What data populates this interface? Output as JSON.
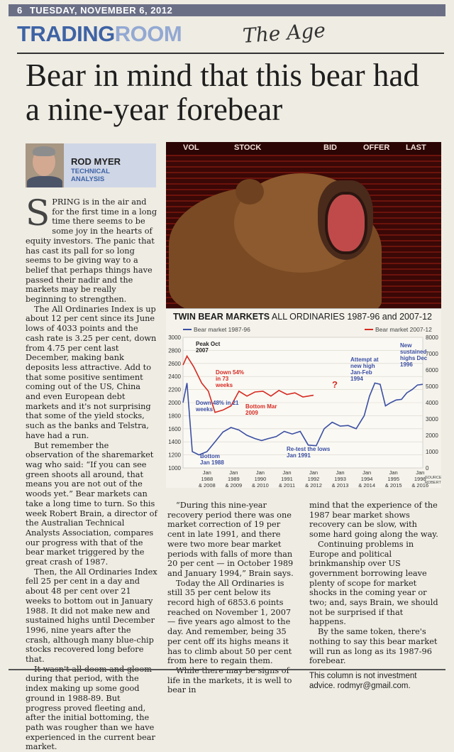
{
  "masthead": {
    "page": "6",
    "date": "TUESDAY, NOVEMBER 6, 2012",
    "section_part1": "TRADING",
    "section_part2": "ROOM",
    "handwritten": "The Age"
  },
  "headline": "Bear in mind that this bear had a nine-year forebear",
  "byline": {
    "author": "ROD MYER",
    "tagline_1": "TECHNICAL",
    "tagline_2": "ANALYSIS"
  },
  "photo": {
    "labels": [
      "VOL",
      "STOCK",
      "BID",
      "OFFER",
      "LAST"
    ]
  },
  "article": {
    "col1": [
      "S",
      "PRING is in the air and for the first time in a long time there seems to be some joy in the hearts of equity investors. The panic that has cast its pall for so long seems to be giving way to a belief that perhaps things have passed their nadir and the markets may be really beginning to strengthen.",
      "The All Ordinaries Index is up about 12 per cent since its June lows of 4033 points and the cash rate is 3.25 per cent, down from 4.75 per cent last December, making bank deposits less attractive. Add to that some positive sentiment coming out of the US, China and even European debt markets and it's not surprising that some of the yield stocks, such as the banks and Telstra, have had a run.",
      "But remember the observation of the sharemarket wag who said: “If you can see green shoots all around, that means you are not out of the woods yet.” Bear markets can take a long time to turn. So this week Robert Brain, a director of the Australian Technical Analysts Association, compares our progress with that of the bear market triggered by the great crash of 1987.",
      "Then, the All Ordinaries Index fell 25 per cent in a day and about 48 per cent over 21 weeks to bottom out in January 1988. It did not make new and sustained highs until December 1996, nine years after the crash, although many blue-chip stocks recovered long before that.",
      "It wasn't all doom and gloom during that period, with the index making up some good ground in 1988-89. But progress proved fleeting and, after the initial bottoming, the path was rougher than we have experienced in the current bear market."
    ],
    "col2": [
      "“During this nine-year recovery period there was one market correction of 19 per cent in late 1991, and there were two more bear market periods with falls of more than 20 per cent — in October 1989 and January 1994,” Brain says.",
      "Today the All Ordinaries is still 35 per cent below its record high of 6853.6 points reached on November 1, 2007 — five years ago almost to the day. And remember, being 35 per cent off its highs means it has to climb about 50 per cent from here to regain them.",
      "While there may be signs of life in the markets, it is well to bear in"
    ],
    "col3": [
      "mind that the experience of the 1987 bear market shows recovery can be slow, with some hard going along the way.",
      "Continuing problems in Europe and political brinkmanship over US government borrowing leave plenty of scope for market shocks in the coming year or two; and, says Brain, we should not be surprised if that happens.",
      "By the same token, there's nothing to say this bear market will run as long as its 1987-96 forebear."
    ],
    "disclaimer": "This column is not investment advice. rodmyr@gmail.com."
  },
  "chart_data": {
    "type": "line",
    "title_bold": "TWIN BEAR MARKETS",
    "title_rest": "ALL ORDINARIES 1987-96 and 2007-12",
    "series": [
      {
        "name": "Bear market 1987-96",
        "color": "#3b4fa3",
        "axis": "left",
        "x": [
          0,
          0.15,
          0.35,
          0.6,
          0.9,
          1.2,
          1.5,
          1.8,
          2.1,
          2.4,
          2.7,
          2.95,
          3.2,
          3.5,
          3.8,
          4.1,
          4.4,
          4.7,
          5.0,
          5.3,
          5.6,
          5.9,
          6.2,
          6.5,
          6.8,
          7.0,
          7.2,
          7.4,
          7.6,
          7.8,
          8.0,
          8.2,
          8.4,
          8.6,
          8.8,
          9.0
        ],
        "y": [
          2000,
          2300,
          1250,
          1200,
          1250,
          1400,
          1550,
          1620,
          1580,
          1500,
          1450,
          1420,
          1450,
          1480,
          1560,
          1520,
          1560,
          1350,
          1340,
          1600,
          1700,
          1640,
          1650,
          1600,
          1800,
          2100,
          2300,
          2280,
          1950,
          2000,
          2040,
          2050,
          2150,
          2200,
          2270,
          2280
        ]
      },
      {
        "name": "Bear market 2007-12",
        "color": "#d62b22",
        "axis": "right",
        "x": [
          0,
          0.15,
          0.4,
          0.7,
          0.95,
          1.2,
          1.5,
          1.8,
          2.1,
          2.4,
          2.7,
          3.0,
          3.3,
          3.6,
          3.9,
          4.2,
          4.5,
          4.9
        ],
        "y": [
          6300,
          6850,
          6200,
          5200,
          4700,
          3400,
          3550,
          3800,
          4700,
          4400,
          4650,
          4700,
          4400,
          4750,
          4500,
          4600,
          4350,
          4450
        ]
      }
    ],
    "left_axis": {
      "ticks": [
        3000,
        2800,
        2600,
        2400,
        2200,
        2000,
        1800,
        1600,
        1400,
        1200,
        1000
      ],
      "ylim": [
        1000,
        3000
      ]
    },
    "right_axis": {
      "ticks": [
        8000,
        7000,
        6000,
        5000,
        4000,
        3000,
        2000,
        1000,
        0
      ],
      "ylim": [
        0,
        8000
      ]
    },
    "x_ticks_top": [
      "Jan 1988",
      "Jan 1989",
      "Jan 1990",
      "Jan 1991",
      "Jan 1992",
      "Jan 1993",
      "Jan 1994",
      "Jan 1995",
      "Jan 1996"
    ],
    "x_ticks_bottom": [
      "& 2008",
      "& 2009",
      "& 2010",
      "& 2011",
      "& 2012",
      "& 2013",
      "& 2014",
      "& 2015",
      "& 2016"
    ],
    "annotations": [
      {
        "text": "Peak Oct 2007",
        "color": "#222"
      },
      {
        "text": "Down 54% in 73 weeks",
        "color": "#d62b22"
      },
      {
        "text": "Bottom Mar 2009",
        "color": "#d62b22"
      },
      {
        "text": "Down 48% in 21 weeks",
        "color": "#3b4fa3"
      },
      {
        "text": "Bottom Jan 1988",
        "color": "#3b4fa3"
      },
      {
        "text": "Re-test the lows Jan 1991",
        "color": "#3b4fa3"
      },
      {
        "text": "Attempt at new high Jan-Feb 1994",
        "color": "#3b4fa3"
      },
      {
        "text": "New sustained highs Dec 1996",
        "color": "#3b4fa3"
      },
      {
        "text": "?",
        "color": "#d62b22"
      }
    ],
    "source": "SOURCE: ROBERT BRAIN"
  }
}
